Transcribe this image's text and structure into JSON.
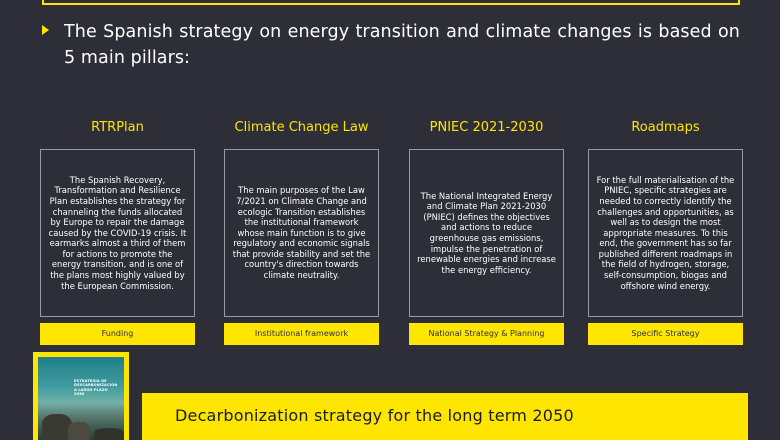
{
  "intro": "The Spanish strategy on energy transition and climate changes is based on 5 main pillars:",
  "pillars": [
    {
      "title": "RTRPlan",
      "text": "The Spanish Recovery, Transformation and Resilience Plan establishes the strategy for channeling the funds allocated by Europe to repair the damage caused by the COVID-19 crisis. It earmarks almost a third of them for actions to promote the energy transition, and is one of the plans most highly valued by the European Commission.",
      "tag": "Funding"
    },
    {
      "title": "Climate Change Law",
      "text": "The main purposes of the Law 7/2021 on Climate Change and ecologic Transition establishes the institutional framework whose main function is to give regulatory and economic signals that provide stability and set the country's direction towards climate neutrality.",
      "tag": "Institutional framework"
    },
    {
      "title": "PNIEC 2021-2030",
      "text": "The National Integrated Energy and Climate Plan 2021-2030 (PNIEC) defines the objectives and actions to reduce greenhouse gas emissions, impulse the penetration of renewable energies and increase the energy efficiency.",
      "tag": "National Strategy & Planning"
    },
    {
      "title": "Roadmaps",
      "text": "For the full materialisation of the PNIEC, specific strategies are needed to correctly identify the challenges and opportunities, as well as to design the most appropriate measures. To this end, the government has so far published different roadmaps in the field of hydrogen, storage, self-consumption, biogas and offshore wind energy.",
      "tag": "Specific Strategy"
    }
  ],
  "cover": {
    "label": "ESTRATEGIA DE DESCARBONIZACIÓN A LARGO PLAZO 2050"
  },
  "banner": "Decarbonization strategy for the long term 2050",
  "colors": {
    "background": "#2e2e38",
    "accent": "#ffe600",
    "text": "#ffffff"
  }
}
